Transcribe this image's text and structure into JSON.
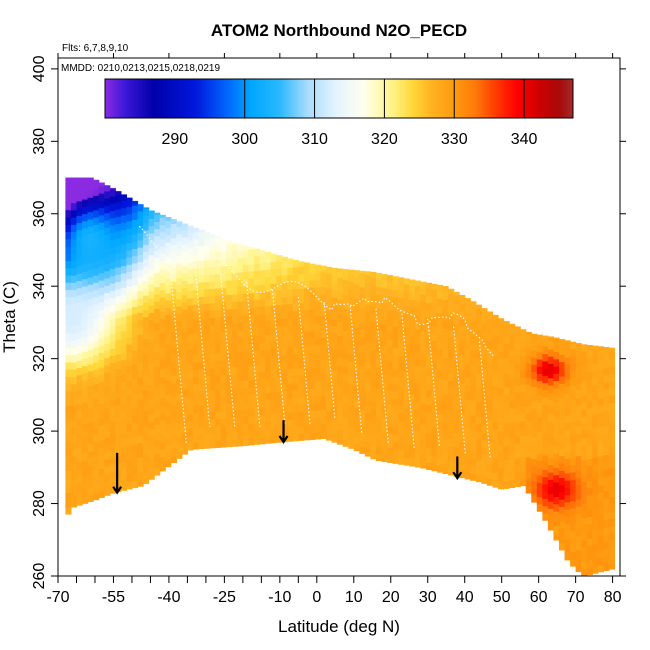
{
  "chart_data": {
    "type": "heatmap",
    "title": "ATOM2 Northbound N2O_PECD",
    "annotations": [
      "Flts: 6,7,8,9,10",
      "MMDD: 0210,0213,0215,0218,0219"
    ],
    "xlabel": "Latitude (deg N)",
    "ylabel": "Theta (C)",
    "xlim": [
      -70,
      82
    ],
    "ylim": [
      260,
      403
    ],
    "x_ticks_major": [
      -70,
      -55,
      -40,
      -25,
      -10,
      0,
      10,
      20,
      30,
      40,
      50,
      60,
      70,
      80
    ],
    "x_tick_labels": [
      "-70",
      "-55",
      "-40",
      "-25",
      "-10",
      "0",
      "10",
      "20",
      "30",
      "40",
      "50",
      "60",
      "70",
      "80"
    ],
    "x_ticks_minor": [
      -65,
      -60,
      -50,
      -45,
      -35,
      -30,
      -20,
      -15,
      -5
    ],
    "y_ticks": [
      260,
      280,
      300,
      320,
      340,
      360,
      380,
      400
    ],
    "y_tick_labels": [
      "260",
      "280",
      "300",
      "320",
      "340",
      "360",
      "380",
      "400"
    ],
    "colorbar": {
      "range": [
        280,
        347
      ],
      "ticks": [
        290,
        300,
        310,
        320,
        330,
        340
      ],
      "tick_labels": [
        "290",
        "300",
        "310",
        "320",
        "330",
        "340"
      ],
      "dividers": [
        300,
        310,
        320,
        330,
        340
      ],
      "stops": [
        {
          "v": 280,
          "c": "#8a2be2"
        },
        {
          "v": 283,
          "c": "#3a17d6"
        },
        {
          "v": 287,
          "c": "#0000aa"
        },
        {
          "v": 293,
          "c": "#0018dd"
        },
        {
          "v": 298,
          "c": "#0070ff"
        },
        {
          "v": 301,
          "c": "#00a8ff"
        },
        {
          "v": 305,
          "c": "#2ab8ff"
        },
        {
          "v": 309,
          "c": "#a8dcff"
        },
        {
          "v": 313,
          "c": "#e4f3ff"
        },
        {
          "v": 317,
          "c": "#ffffee"
        },
        {
          "v": 321,
          "c": "#fff48a"
        },
        {
          "v": 324,
          "c": "#ffd83a"
        },
        {
          "v": 327,
          "c": "#ffb020"
        },
        {
          "v": 330,
          "c": "#ff9a10"
        },
        {
          "v": 333,
          "c": "#ff7a0a"
        },
        {
          "v": 336,
          "c": "#ff3a00"
        },
        {
          "v": 339,
          "c": "#ff0000"
        },
        {
          "v": 342,
          "c": "#d00000"
        },
        {
          "v": 345,
          "c": "#a80a0a"
        },
        {
          "v": 347,
          "c": "#a52a2a"
        }
      ]
    },
    "coverage_top": [
      [
        -68,
        370
      ],
      [
        -61,
        370
      ],
      [
        -55,
        367
      ],
      [
        -45,
        361
      ],
      [
        -35,
        357
      ],
      [
        -25,
        353
      ],
      [
        -15,
        350
      ],
      [
        -5,
        347
      ],
      [
        5,
        345
      ],
      [
        15,
        344
      ],
      [
        25,
        342
      ],
      [
        35,
        340
      ],
      [
        42,
        336
      ],
      [
        50,
        331
      ],
      [
        58,
        327
      ],
      [
        64,
        326
      ],
      [
        72,
        324
      ],
      [
        80,
        323
      ]
    ],
    "coverage_bottom": [
      [
        -68,
        276
      ],
      [
        -66,
        279
      ],
      [
        -60,
        281
      ],
      [
        -55,
        283
      ],
      [
        -47,
        285
      ],
      [
        -34,
        295
      ],
      [
        -20,
        296
      ],
      [
        -10,
        297
      ],
      [
        2,
        298
      ],
      [
        10,
        295
      ],
      [
        16,
        292
      ],
      [
        28,
        290
      ],
      [
        36,
        288
      ],
      [
        44,
        286
      ],
      [
        50,
        284
      ],
      [
        56,
        285
      ],
      [
        62,
        275
      ],
      [
        68,
        264
      ],
      [
        72,
        260
      ],
      [
        80,
        262
      ]
    ],
    "features": [
      {
        "kind": "warm-blob",
        "x": 62,
        "y": 316,
        "w": 5,
        "h": 4,
        "value": 341
      },
      {
        "kind": "warm-blob",
        "x": 64,
        "y": 283,
        "w": 6,
        "h": 5,
        "value": 339
      },
      {
        "kind": "cool-region",
        "x": -62,
        "y": 352,
        "value": 303
      },
      {
        "kind": "cool-region",
        "x": -67,
        "y": 330,
        "value": 312
      }
    ],
    "arrows": [
      {
        "x": -54,
        "y_from": 294,
        "y_to": 283
      },
      {
        "x": -9,
        "y_from": 303,
        "y_to": 297
      },
      {
        "x": 38,
        "y_from": 293,
        "y_to": 287
      }
    ],
    "grid": false,
    "legend": "top"
  }
}
